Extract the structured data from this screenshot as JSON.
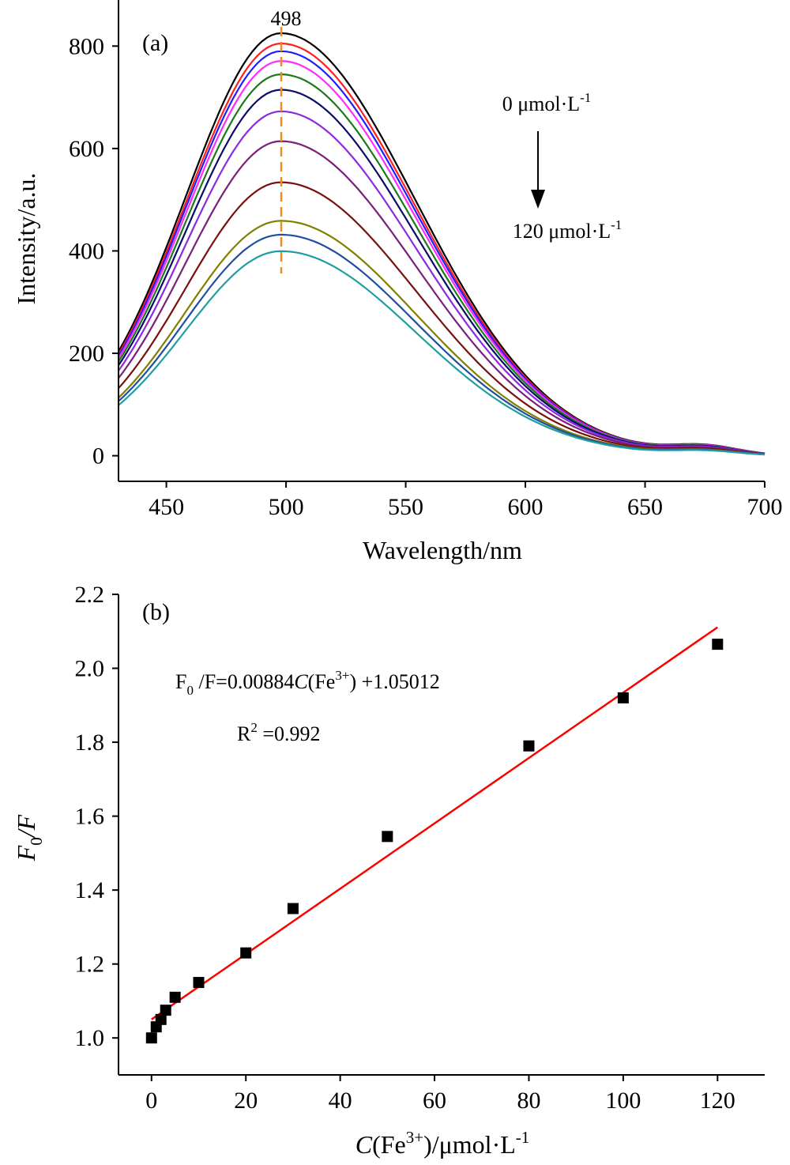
{
  "chart_data": [
    {
      "type": "line",
      "panel_label": "(a)",
      "xlabel": "Wavelength/nm",
      "ylabel": "Intensity/a.u.",
      "xlim": [
        430,
        700
      ],
      "ylim": [
        -50,
        890
      ],
      "xticks": [
        450,
        500,
        550,
        600,
        650,
        700
      ],
      "yticks": [
        0,
        200,
        400,
        600,
        800
      ],
      "peak_marker": {
        "x": 498,
        "label": "498",
        "color": "#f08c1e",
        "style": "dashed"
      },
      "annotation": {
        "top": "0 μmol·L",
        "top_sup": "-1",
        "bottom": "120 μmol·L",
        "bottom_sup": "-1"
      },
      "series": [
        {
          "peak": 822,
          "color": "#000000"
        },
        {
          "peak": 802,
          "color": "#ff1f1f"
        },
        {
          "peak": 787,
          "color": "#1f1fff"
        },
        {
          "peak": 768,
          "color": "#ff2bff"
        },
        {
          "peak": 742,
          "color": "#1a7a1a"
        },
        {
          "peak": 712,
          "color": "#0b0b6b"
        },
        {
          "peak": 670,
          "color": "#8a2be2"
        },
        {
          "peak": 612,
          "color": "#7a1f7a"
        },
        {
          "peak": 532,
          "color": "#7a0f0f"
        },
        {
          "peak": 457,
          "color": "#808000"
        },
        {
          "peak": 430,
          "color": "#1f4fa0"
        },
        {
          "peak": 398,
          "color": "#1f9ea0"
        }
      ]
    },
    {
      "type": "scatter",
      "panel_label": "(b)",
      "xlabel_italic": "C",
      "xlabel_pre": "(Fe",
      "xlabel_sup": "3+",
      "xlabel_post": ")/μmol·L",
      "xlabel_sup2": "-1",
      "ylabel_italic": "F",
      "ylabel_sub": "0",
      "ylabel_post": "/F",
      "xlim": [
        -7,
        130
      ],
      "ylim": [
        0.9,
        2.2
      ],
      "xticks": [
        0,
        20,
        40,
        60,
        80,
        100,
        120
      ],
      "yticks": [
        1.0,
        1.2,
        1.4,
        1.6,
        1.8,
        2.0,
        2.2
      ],
      "points": [
        {
          "x": 0,
          "y": 1.0
        },
        {
          "x": 1,
          "y": 1.03
        },
        {
          "x": 2,
          "y": 1.05
        },
        {
          "x": 3,
          "y": 1.075
        },
        {
          "x": 5,
          "y": 1.11
        },
        {
          "x": 10,
          "y": 1.15
        },
        {
          "x": 20,
          "y": 1.23
        },
        {
          "x": 30,
          "y": 1.35
        },
        {
          "x": 50,
          "y": 1.545
        },
        {
          "x": 80,
          "y": 1.79
        },
        {
          "x": 100,
          "y": 1.92
        },
        {
          "x": 120,
          "y": 2.065
        }
      ],
      "fit": {
        "slope": 0.00884,
        "intercept": 1.05012,
        "x_range": [
          0,
          120
        ],
        "color": "#ff0000"
      },
      "equation": {
        "p1": "F",
        "sub": "0",
        "p2": " /F=0.00884",
        "p3": "C",
        "p4": "(Fe",
        "sup": "3+",
        "p5": ") +1.05012"
      },
      "r2": {
        "p1": "R",
        "sup": "2",
        "p2": " =0.992"
      }
    }
  ]
}
